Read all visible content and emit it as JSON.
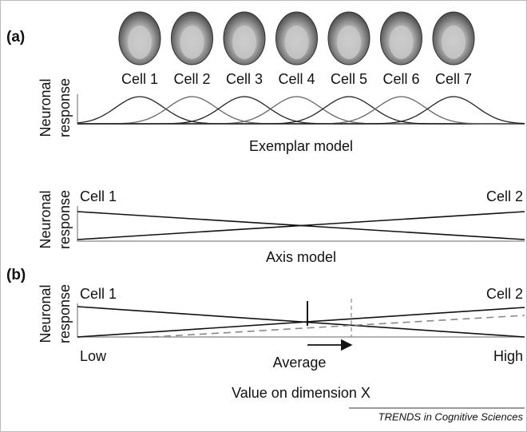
{
  "exemplar_model": {
    "panel_label": "(a)",
    "cells": [
      "Cell 1",
      "Cell 2",
      "Cell 3",
      "Cell 4",
      "Cell 5",
      "Cell 6",
      "Cell 7"
    ],
    "y_axis_label": [
      "Neuronal",
      "response"
    ],
    "caption": "Exemplar model"
  },
  "axis_model": {
    "y_axis_label": [
      "Neuronal",
      "response"
    ],
    "left_label": "Cell 1",
    "right_label": "Cell 2",
    "caption": "Axis model"
  },
  "adaptation": {
    "panel_label": "(b)",
    "y_axis_label": [
      "Neuronal",
      "response"
    ],
    "left_label": "Cell 1",
    "right_label": "Cell 2",
    "x_labels": [
      "Low",
      "Average",
      "High"
    ],
    "x_axis_title": "Value on dimension X"
  },
  "footer": "TRENDS in Cognitive Sciences"
}
